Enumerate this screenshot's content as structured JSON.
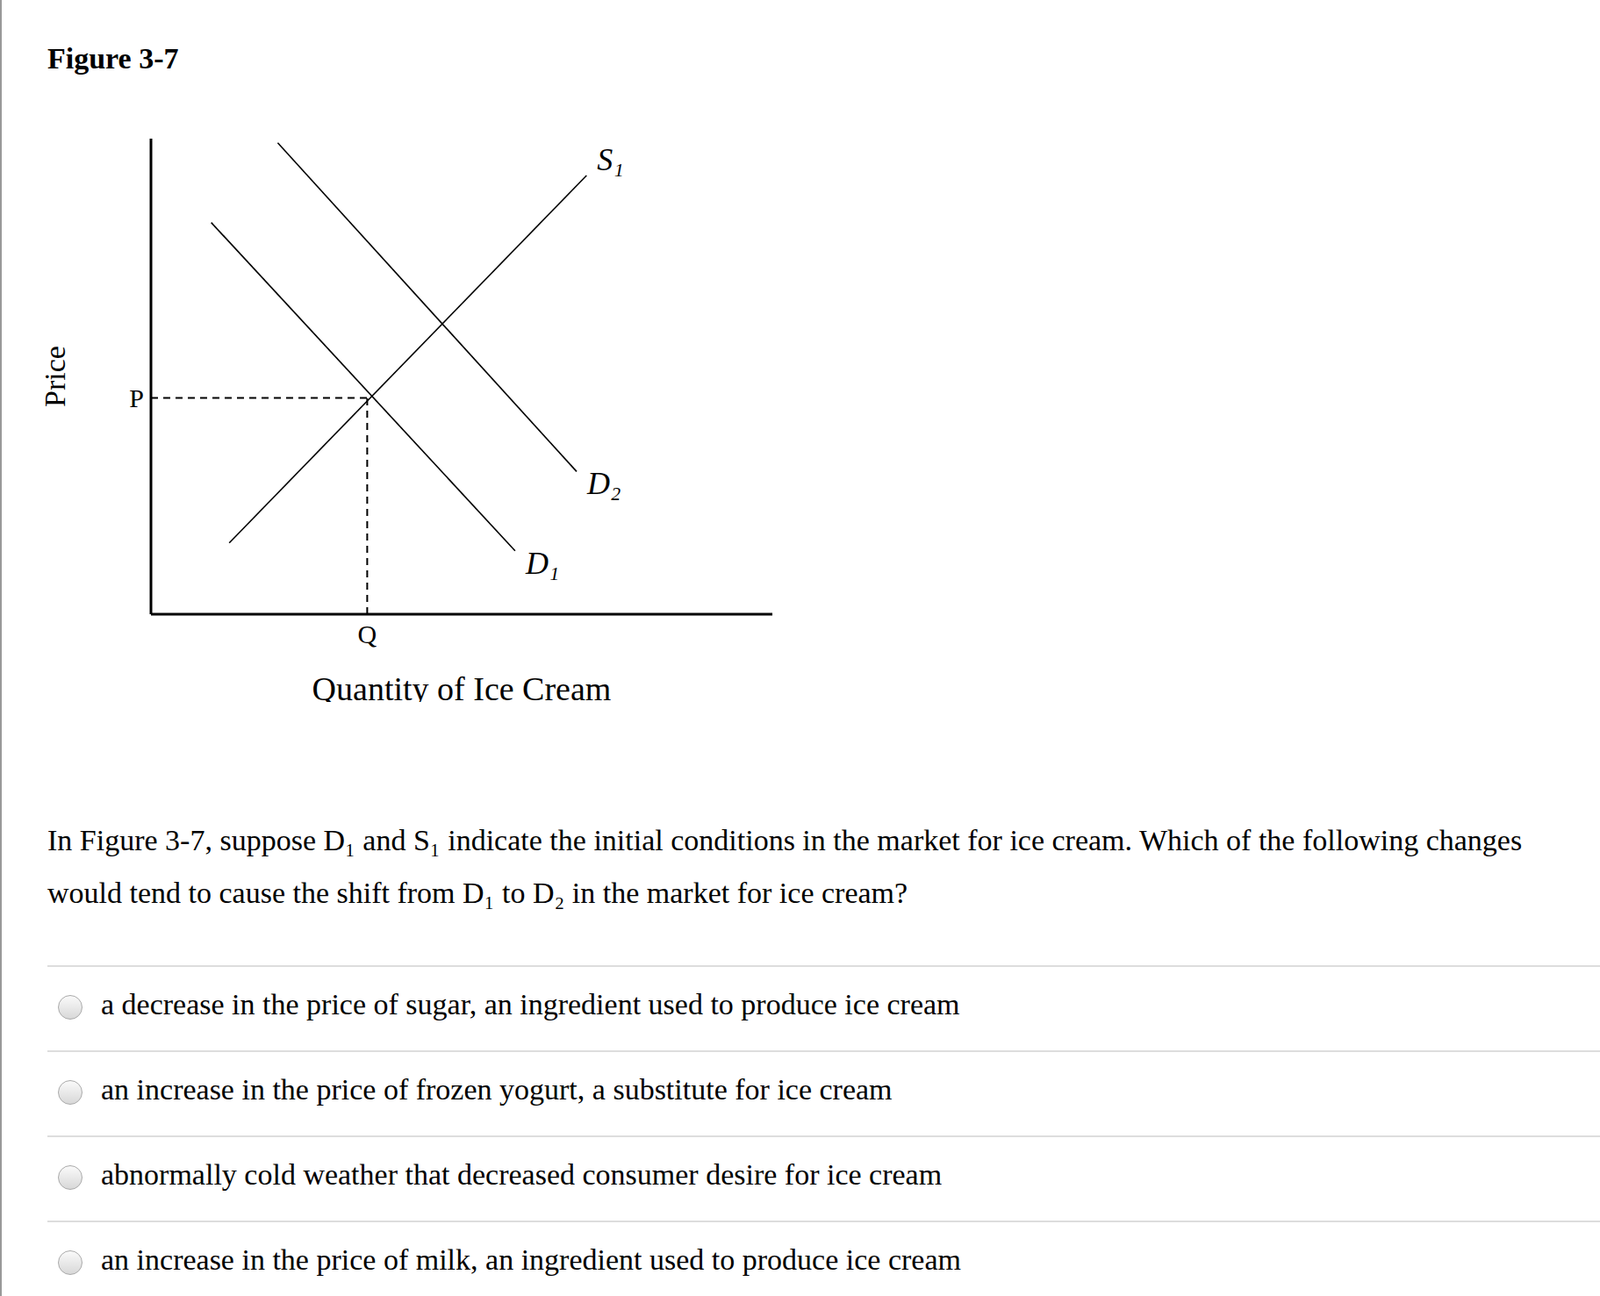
{
  "figure_title": "Figure 3-7",
  "chart_data": {
    "type": "line",
    "x_label": "Quantity of Ice Cream",
    "y_label": "Price",
    "xlim": [
      0,
      10
    ],
    "ylim": [
      0,
      10.2
    ],
    "xticks": [
      {
        "value": 3.48,
        "label": "Q"
      }
    ],
    "yticks": [
      {
        "value": 4.64,
        "label": "P"
      }
    ],
    "grid": false,
    "series": [
      {
        "name": "S₁",
        "color": "#000000",
        "line_style": "solid",
        "x": [
          1.26,
          7.01
        ],
        "values": [
          1.53,
          9.41
        ]
      },
      {
        "name": "D₁",
        "color": "#000000",
        "line_style": "solid",
        "x": [
          0.97,
          5.86
        ],
        "values": [
          8.4,
          1.36
        ]
      },
      {
        "name": "D₂",
        "color": "#000000",
        "line_style": "solid",
        "x": [
          2.04,
          6.85
        ],
        "values": [
          10.11,
          3.06
        ]
      }
    ]
  },
  "question": "In Figure 3-7, suppose D₁ and S₁ indicate the initial conditions in the market for ice cream. Which of the following changes would tend to cause the shift from D₁ to D₂ in the market for ice cream?",
  "options": [
    "a decrease in the price of sugar, an ingredient used to produce ice cream",
    "an increase in the price of frozen yogurt, a substitute for ice cream",
    "abnormally cold weather that decreased consumer desire for ice cream",
    "an increase in the price of milk, an ingredient used to produce ice cream"
  ]
}
